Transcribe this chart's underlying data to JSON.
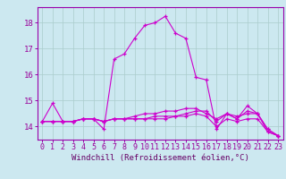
{
  "xlabel": "Windchill (Refroidissement éolien,°C)",
  "background_color": "#cce8f0",
  "grid_color": "#aacccc",
  "line_color": "#cc00cc",
  "spine_color": "#9900aa",
  "tick_label_color": "#990099",
  "xlabel_color": "#660066",
  "x_hours": [
    0,
    1,
    2,
    3,
    4,
    5,
    6,
    7,
    8,
    9,
    10,
    11,
    12,
    13,
    14,
    15,
    16,
    17,
    18,
    19,
    20,
    21,
    22,
    23
  ],
  "series": [
    [
      14.2,
      14.9,
      14.2,
      14.2,
      14.3,
      14.3,
      13.9,
      16.6,
      16.8,
      17.4,
      17.9,
      18.0,
      18.25,
      17.6,
      17.4,
      15.9,
      15.8,
      13.9,
      14.5,
      14.3,
      14.8,
      14.5,
      13.8,
      13.65
    ],
    [
      14.2,
      14.2,
      14.2,
      14.2,
      14.3,
      14.3,
      14.2,
      14.3,
      14.3,
      14.3,
      14.3,
      14.4,
      14.4,
      14.4,
      14.5,
      14.6,
      14.6,
      14.2,
      14.5,
      14.4,
      14.5,
      14.5,
      13.9,
      13.65
    ],
    [
      14.2,
      14.2,
      14.2,
      14.2,
      14.3,
      14.3,
      14.2,
      14.3,
      14.3,
      14.4,
      14.5,
      14.5,
      14.6,
      14.6,
      14.7,
      14.7,
      14.5,
      14.3,
      14.5,
      14.3,
      14.6,
      14.5,
      13.9,
      13.65
    ],
    [
      14.2,
      14.2,
      14.2,
      14.2,
      14.3,
      14.3,
      14.2,
      14.3,
      14.3,
      14.3,
      14.3,
      14.3,
      14.3,
      14.4,
      14.4,
      14.5,
      14.4,
      14.0,
      14.3,
      14.2,
      14.3,
      14.3,
      13.8,
      13.65
    ]
  ],
  "ylim": [
    13.5,
    18.6
  ],
  "yticks": [
    14,
    15,
    16,
    17,
    18
  ],
  "marker": "+",
  "markersize": 3,
  "linewidth": 0.8,
  "xlabel_fontsize": 6.5,
  "tick_fontsize": 6.0
}
